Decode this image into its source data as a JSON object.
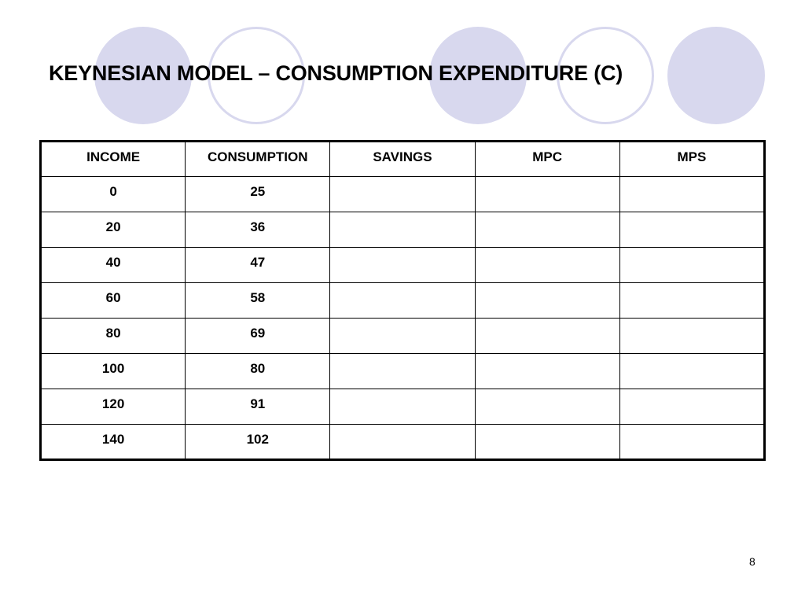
{
  "slide": {
    "title": "KEYNESIAN MODEL – CONSUMPTION EXPENDITURE (C)",
    "page_number": "8"
  },
  "colors": {
    "circle_fill": "#d8d8ee",
    "circle_ring": "#d8d8ee",
    "text": "#000000"
  },
  "table": {
    "headers": [
      "INCOME",
      "CONSUMPTION",
      "SAVINGS",
      "MPC",
      "MPS"
    ],
    "rows": [
      [
        "0",
        "25",
        "",
        "",
        ""
      ],
      [
        "20",
        "36",
        "",
        "",
        ""
      ],
      [
        "40",
        "47",
        "",
        "",
        ""
      ],
      [
        "60",
        "58",
        "",
        "",
        ""
      ],
      [
        "80",
        "69",
        "",
        "",
        ""
      ],
      [
        "100",
        "80",
        "",
        "",
        ""
      ],
      [
        "120",
        "91",
        "",
        "",
        ""
      ],
      [
        "140",
        "102",
        "",
        "",
        ""
      ]
    ]
  }
}
